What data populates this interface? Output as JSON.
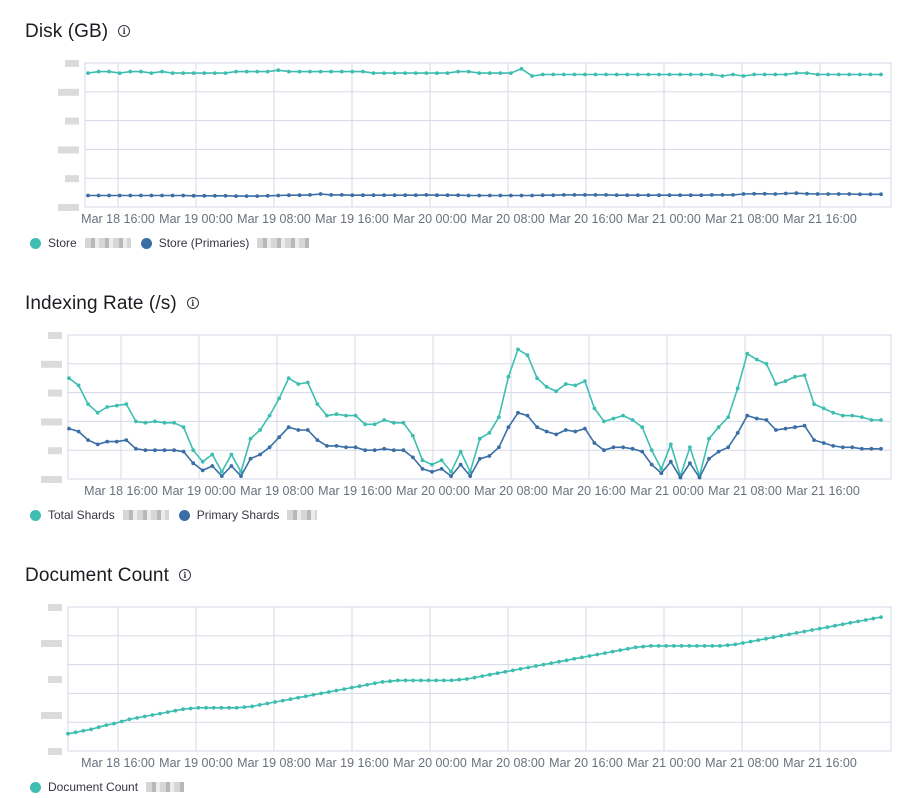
{
  "colors": {
    "store": "#3ebeb0",
    "primary": "#3b6ea5",
    "grid": "#d3dae6",
    "axis_text": "#69707d"
  },
  "panels": [
    {
      "title": "Disk (GB)",
      "info_icon": "info-icon",
      "legend": [
        {
          "label": "Store",
          "color": "#3ebeb0"
        },
        {
          "label": "Store (Primaries)",
          "color": "#3b6ea5"
        }
      ]
    },
    {
      "title": "Indexing Rate (/s)",
      "info_icon": "info-icon",
      "legend": [
        {
          "label": "Total Shards",
          "color": "#3ebeb0"
        },
        {
          "label": "Primary Shards",
          "color": "#3b6ea5"
        }
      ]
    },
    {
      "title": "Document Count",
      "info_icon": "info-icon",
      "legend": [
        {
          "label": "Document Count",
          "color": "#3ebeb0"
        }
      ]
    }
  ],
  "chart_data": [
    {
      "type": "line",
      "title": "Disk (GB)",
      "x_ticks": [
        "Mar 18 16:00",
        "Mar 19 00:00",
        "Mar 19 08:00",
        "Mar 19 16:00",
        "Mar 20 00:00",
        "Mar 20 08:00",
        "Mar 20 16:00",
        "Mar 21 00:00",
        "Mar 21 08:00",
        "Mar 21 16:00"
      ],
      "ylim": [
        0,
        100
      ],
      "y_tick_labels_visible": false,
      "grid": true,
      "legend_position": "bottom-left",
      "series": [
        {
          "name": "Store",
          "values": [
            93,
            94,
            94,
            93,
            94,
            94,
            93,
            94,
            93,
            93,
            93,
            93,
            93,
            93,
            94,
            94,
            94,
            94,
            95,
            94,
            94,
            94,
            94,
            94,
            94,
            94,
            94,
            93,
            93,
            93,
            93,
            93,
            93,
            93,
            93,
            94,
            94,
            93,
            93,
            93,
            93,
            96,
            91,
            92,
            92,
            92,
            92,
            92,
            92,
            92,
            92,
            92,
            92,
            92,
            92,
            92,
            92,
            92,
            92,
            92,
            91,
            92,
            91,
            92,
            92,
            92,
            92,
            93,
            93,
            92,
            92,
            92,
            92,
            92,
            92,
            92
          ]
        },
        {
          "name": "Store (Primaries)",
          "values": [
            8,
            8,
            8,
            8,
            8,
            8,
            8,
            8,
            8,
            8,
            7.8,
            7.8,
            7.8,
            7.8,
            7.6,
            7.6,
            7.6,
            7.8,
            8,
            8.2,
            8.2,
            8.4,
            9,
            8.4,
            8.4,
            8.2,
            8.2,
            8.2,
            8.2,
            8.2,
            8.2,
            8.2,
            8.4,
            8.2,
            8.2,
            8.2,
            8,
            8,
            8,
            8,
            8,
            8,
            8,
            8.2,
            8.2,
            8.4,
            8.4,
            8.4,
            8.4,
            8.4,
            8.2,
            8.2,
            8.2,
            8.2,
            8.2,
            8.2,
            8.2,
            8.2,
            8.2,
            8.4,
            8.4,
            8.4,
            9,
            9.2,
            9.2,
            9,
            9.4,
            9.6,
            9.2,
            9,
            9,
            9,
            9,
            8.8,
            8.8,
            8.8
          ]
        }
      ]
    },
    {
      "type": "line",
      "title": "Indexing Rate (/s)",
      "x_ticks": [
        "Mar 18 16:00",
        "Mar 19 00:00",
        "Mar 19 08:00",
        "Mar 19 16:00",
        "Mar 20 00:00",
        "Mar 20 08:00",
        "Mar 20 16:00",
        "Mar 21 00:00",
        "Mar 21 08:00",
        "Mar 21 16:00"
      ],
      "ylim": [
        0,
        100
      ],
      "y_tick_labels_visible": false,
      "grid": true,
      "legend_position": "bottom-left",
      "series": [
        {
          "name": "Total Shards",
          "values": [
            70,
            65,
            52,
            46,
            50,
            51,
            52,
            40,
            39,
            40,
            39,
            39,
            36,
            20,
            12,
            17,
            5,
            17,
            5,
            28,
            34,
            44,
            56,
            70,
            66,
            67,
            52,
            44,
            45,
            44,
            44,
            38,
            38,
            41,
            39,
            39,
            30,
            13,
            10,
            13,
            5,
            19,
            5,
            28,
            32,
            43,
            71,
            90,
            86,
            70,
            64,
            61,
            66,
            65,
            68,
            49,
            40,
            42,
            44,
            41,
            36,
            20,
            7,
            24,
            2,
            22,
            2,
            28,
            36,
            43,
            63,
            87,
            83,
            80,
            66,
            68,
            71,
            72,
            52,
            49,
            46,
            44,
            44,
            43,
            41,
            41
          ]
        },
        {
          "name": "Primary Shards",
          "values": [
            35,
            33,
            27,
            24,
            26,
            26,
            27,
            21,
            20,
            20,
            20,
            20,
            19,
            11,
            6,
            9,
            2,
            9,
            2,
            14,
            17,
            22,
            29,
            36,
            34,
            34,
            27,
            23,
            23,
            22,
            22,
            20,
            20,
            21,
            20,
            20,
            15,
            7,
            5,
            7,
            2,
            10,
            2,
            14,
            16,
            22,
            36,
            46,
            44,
            36,
            33,
            31,
            34,
            33,
            35,
            25,
            20,
            22,
            22,
            21,
            19,
            10,
            4,
            12,
            1,
            11,
            1,
            14,
            19,
            22,
            32,
            44,
            42,
            41,
            34,
            35,
            36,
            37,
            27,
            25,
            23,
            22,
            22,
            21,
            21,
            21
          ]
        }
      ]
    },
    {
      "type": "line",
      "title": "Document Count",
      "x_ticks": [
        "Mar 18 16:00",
        "Mar 19 00:00",
        "Mar 19 08:00",
        "Mar 19 16:00",
        "Mar 20 00:00",
        "Mar 20 08:00",
        "Mar 20 16:00",
        "Mar 21 00:00",
        "Mar 21 08:00",
        "Mar 21 16:00"
      ],
      "ylim": [
        0,
        100
      ],
      "y_tick_labels_visible": false,
      "grid": true,
      "legend_position": "bottom-left",
      "series": [
        {
          "name": "Document Count",
          "values": [
            12,
            13,
            14,
            15,
            16.5,
            18,
            19,
            20.5,
            22,
            23,
            24,
            25,
            26,
            27,
            28,
            29,
            29.5,
            30,
            30,
            30,
            30,
            30,
            30,
            30.5,
            31,
            32,
            33,
            34,
            35,
            36,
            37,
            38,
            39,
            40,
            41,
            42,
            43,
            44,
            45,
            46,
            47,
            48,
            48.5,
            49,
            49,
            49,
            49,
            49,
            49,
            49,
            49,
            49.5,
            50,
            51,
            52,
            53,
            54,
            55,
            56,
            57,
            58,
            59,
            60,
            61,
            62,
            63,
            64,
            65,
            66,
            67,
            68,
            69,
            70,
            71,
            72,
            72.5,
            73,
            73,
            73,
            73,
            73,
            73,
            73,
            73,
            73,
            73,
            73.5,
            74,
            75,
            76,
            77,
            78,
            79,
            80,
            81,
            82,
            83,
            84,
            85,
            86,
            87,
            88,
            89,
            90,
            91,
            92,
            93
          ]
        }
      ]
    }
  ]
}
